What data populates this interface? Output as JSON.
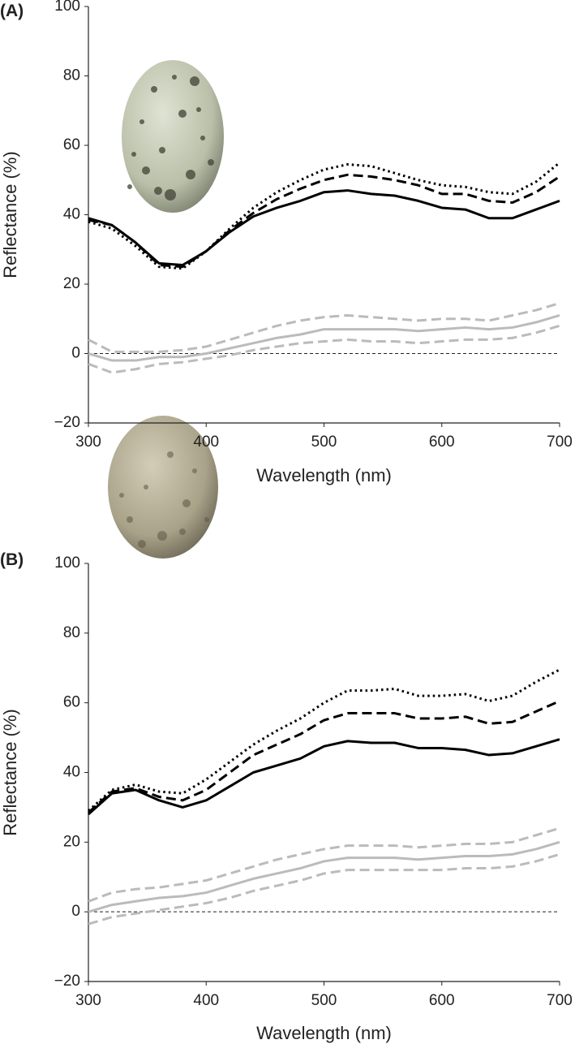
{
  "chart_data": [
    {
      "type": "line",
      "panel_label": "(A)",
      "xlabel": "Wavelength (nm)",
      "ylabel": "Reflectance (%)",
      "x": [
        300,
        320,
        340,
        360,
        380,
        400,
        420,
        440,
        460,
        480,
        500,
        520,
        540,
        560,
        580,
        600,
        620,
        640,
        660,
        680,
        700
      ],
      "xlim": [
        300,
        700
      ],
      "xticks": [
        300,
        400,
        500,
        600,
        700
      ],
      "ylim": [
        -20,
        100
      ],
      "yticks": [
        {
          "value": -20,
          "label": "−20"
        },
        0,
        20,
        40,
        60,
        80,
        100
      ],
      "reference_line": 0,
      "grid": false,
      "series": [
        {
          "color": "#000000",
          "style": "solid",
          "values": [
            39,
            37,
            32,
            26,
            25.5,
            29.5,
            35,
            39.5,
            42,
            44,
            46.5,
            47,
            46,
            45.5,
            44,
            42,
            41.5,
            39,
            39,
            41.5,
            44
          ]
        },
        {
          "color": "#000000",
          "style": "dashed",
          "values": [
            38.5,
            37,
            32,
            25.5,
            25,
            29.5,
            35.5,
            40.5,
            44.5,
            47.5,
            50,
            51.5,
            51,
            50,
            48.5,
            46,
            46,
            44,
            43.5,
            46.5,
            51
          ]
        },
        {
          "color": "#000000",
          "style": "dotted",
          "values": [
            38,
            36,
            31,
            25,
            24.5,
            29.5,
            36,
            42,
            46.5,
            50,
            53,
            54.5,
            54,
            52,
            50,
            48.5,
            48,
            46.5,
            46,
            49.5,
            55
          ]
        },
        {
          "color": "#bbbbbb",
          "style": "solid",
          "values": [
            0,
            -2,
            -2,
            -1,
            -1,
            0,
            1.5,
            3,
            4.5,
            5.5,
            7,
            7,
            7,
            7,
            6.5,
            7,
            7.5,
            7,
            7.5,
            9,
            11
          ]
        },
        {
          "color": "#bbbbbb",
          "style": "dashed",
          "values": [
            4,
            0.5,
            0.5,
            0.5,
            1,
            2,
            4,
            6,
            8,
            9.5,
            10.5,
            11,
            10.5,
            10,
            9.5,
            10,
            10,
            9.5,
            11,
            12.5,
            14.5
          ]
        },
        {
          "color": "#bbbbbb",
          "style": "dashed",
          "values": [
            -3,
            -5.5,
            -4.5,
            -3,
            -2.5,
            -1.5,
            -0.5,
            1,
            2,
            3,
            3.5,
            4,
            3.5,
            3.5,
            3,
            3.5,
            4,
            4,
            4.5,
            6,
            8
          ]
        }
      ]
    },
    {
      "type": "line",
      "panel_label": "(B)",
      "xlabel": "Wavelength (nm)",
      "ylabel": "Reflectance (%)",
      "x": [
        300,
        320,
        340,
        360,
        380,
        400,
        420,
        440,
        460,
        480,
        500,
        520,
        540,
        560,
        580,
        600,
        620,
        640,
        660,
        680,
        700
      ],
      "xlim": [
        300,
        700
      ],
      "xticks": [
        300,
        400,
        500,
        600,
        700
      ],
      "ylim": [
        -20,
        100
      ],
      "yticks": [
        {
          "value": -20,
          "label": "−20"
        },
        0,
        20,
        40,
        60,
        80,
        100
      ],
      "reference_line": 0,
      "grid": false,
      "series": [
        {
          "color": "#000000",
          "style": "solid",
          "values": [
            28,
            34,
            35,
            32,
            30,
            32,
            36,
            40,
            42,
            44,
            47.5,
            49,
            48.5,
            48.5,
            47,
            47,
            46.5,
            45,
            45.5,
            47.5,
            49.5
          ]
        },
        {
          "color": "#000000",
          "style": "dashed",
          "values": [
            28.5,
            34.5,
            35.5,
            33,
            32,
            35,
            40,
            45,
            48,
            51,
            55,
            57,
            57,
            57,
            55.5,
            55.5,
            56,
            54,
            54.5,
            57.5,
            60.5
          ]
        },
        {
          "color": "#000000",
          "style": "dotted",
          "values": [
            29,
            35,
            36.5,
            34.5,
            34,
            38,
            43,
            48,
            52,
            55.5,
            60,
            63.5,
            63.5,
            64,
            62,
            62,
            62.5,
            60.5,
            62,
            66,
            69.5
          ]
        },
        {
          "color": "#bbbbbb",
          "style": "solid",
          "values": [
            0,
            2,
            3,
            4,
            4.5,
            5.5,
            7.5,
            9.5,
            11,
            12.5,
            14.5,
            15.5,
            15.5,
            15.5,
            15,
            15.5,
            16,
            16,
            16.5,
            18,
            20
          ]
        },
        {
          "color": "#bbbbbb",
          "style": "dashed",
          "values": [
            3,
            5.5,
            6.5,
            7,
            8,
            9,
            11,
            13,
            15,
            16.5,
            18,
            19,
            19,
            19,
            18.5,
            19,
            19.5,
            19.5,
            20,
            22,
            24
          ]
        },
        {
          "color": "#bbbbbb",
          "style": "dashed",
          "values": [
            -3.5,
            -1.5,
            -0.5,
            0.5,
            1.5,
            2.5,
            4,
            6,
            7.5,
            9,
            11,
            12,
            12,
            12,
            12,
            12,
            12.5,
            12.5,
            13,
            14.5,
            16.5
          ]
        }
      ]
    }
  ]
}
